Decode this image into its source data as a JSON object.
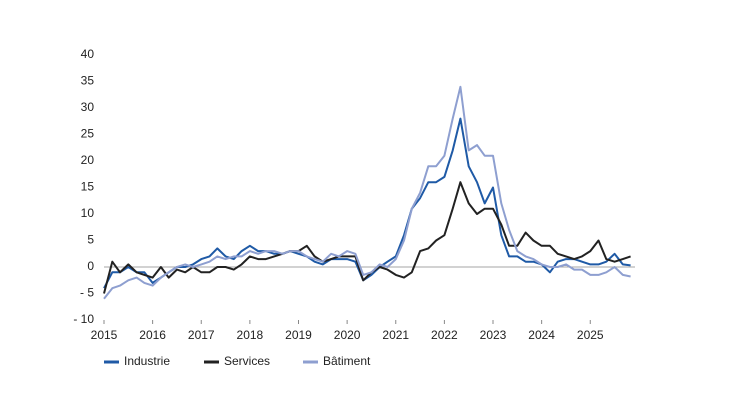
{
  "chart_data": {
    "type": "line",
    "x": [
      2015,
      2015.17,
      2015.33,
      2015.5,
      2015.67,
      2015.83,
      2016,
      2016.17,
      2016.33,
      2016.5,
      2016.67,
      2016.83,
      2017,
      2017.17,
      2017.33,
      2017.5,
      2017.67,
      2017.83,
      2018,
      2018.17,
      2018.33,
      2018.5,
      2018.67,
      2018.83,
      2019,
      2019.17,
      2019.33,
      2019.5,
      2019.67,
      2019.83,
      2020,
      2020.17,
      2020.33,
      2020.5,
      2020.67,
      2020.83,
      2021,
      2021.17,
      2021.33,
      2021.5,
      2021.67,
      2021.83,
      2022,
      2022.17,
      2022.33,
      2022.5,
      2022.67,
      2022.83,
      2023,
      2023.17,
      2023.33,
      2023.5,
      2023.67,
      2023.83,
      2024,
      2024.17,
      2024.33,
      2024.5,
      2024.67,
      2024.83,
      2025,
      2025.17,
      2025.33,
      2025.5,
      2025.67,
      2025.83
    ],
    "series": [
      {
        "name": "Industrie",
        "color": "#1f5aa6",
        "values": [
          -4,
          -1,
          -1,
          0,
          -1,
          -1,
          -3,
          -2,
          -1,
          0,
          0,
          0.5,
          1.5,
          2,
          3.5,
          2,
          1.5,
          3,
          4,
          3,
          3,
          2.5,
          2.5,
          3,
          2.5,
          2,
          1,
          0.5,
          1.5,
          1.5,
          1.5,
          1,
          -2.5,
          -1.5,
          0,
          1,
          2,
          6,
          11,
          13,
          16,
          16,
          17,
          22,
          28,
          19,
          16,
          12,
          15,
          6,
          2,
          2,
          1,
          1,
          0.5,
          -1,
          1,
          1.5,
          1.5,
          1,
          0.5,
          0.5,
          1,
          2.5,
          0.5,
          0.3
        ]
      },
      {
        "name": "Services",
        "color": "#222222",
        "values": [
          -5,
          1,
          -1,
          0.5,
          -1,
          -1.5,
          -2,
          0,
          -2,
          -0.5,
          -1,
          0,
          -1,
          -1,
          0,
          0,
          -0.5,
          0.5,
          2,
          1.5,
          1.5,
          2,
          2.5,
          3,
          3,
          4,
          2,
          1,
          1.5,
          2,
          2,
          2,
          -2.5,
          -1,
          0,
          -0.5,
          -1.5,
          -2,
          -1,
          3,
          3.5,
          5,
          6,
          11,
          16,
          12,
          10,
          11,
          11,
          8,
          4,
          4,
          6.5,
          5,
          4,
          4,
          2.5,
          2,
          1.5,
          2,
          3,
          5,
          1.5,
          1,
          1.5,
          2
        ]
      },
      {
        "name": "Bâtiment",
        "color": "#8e9fd0",
        "values": [
          -6,
          -4,
          -3.5,
          -2.5,
          -2,
          -3,
          -3.5,
          -2,
          -1,
          0,
          0.5,
          0,
          0.5,
          1,
          2,
          1.5,
          2,
          2,
          3,
          2.5,
          3,
          3,
          2.5,
          3,
          3,
          2,
          1.5,
          1,
          2.5,
          2,
          3,
          2.5,
          -1.5,
          -1,
          0.5,
          0,
          1.5,
          5,
          11,
          14,
          19,
          19,
          21,
          28,
          34,
          22,
          23,
          21,
          21,
          12,
          7,
          3,
          2,
          1.5,
          0.5,
          0,
          0,
          0.5,
          -0.5,
          -0.5,
          -1.5,
          -1.5,
          -1,
          0,
          -1.5,
          -1.8
        ]
      }
    ],
    "xlim": [
      2015,
      2025.92
    ],
    "xticks": [
      2015,
      2016,
      2017,
      2018,
      2019,
      2020,
      2021,
      2022,
      2023,
      2024,
      2025
    ],
    "ylim": [
      -10,
      40
    ],
    "yticks": [
      {
        "value": -10,
        "label": "- 10"
      },
      {
        "value": -5,
        "label": "- 5"
      },
      0,
      5,
      10,
      15,
      20,
      25,
      30,
      35,
      40
    ]
  }
}
